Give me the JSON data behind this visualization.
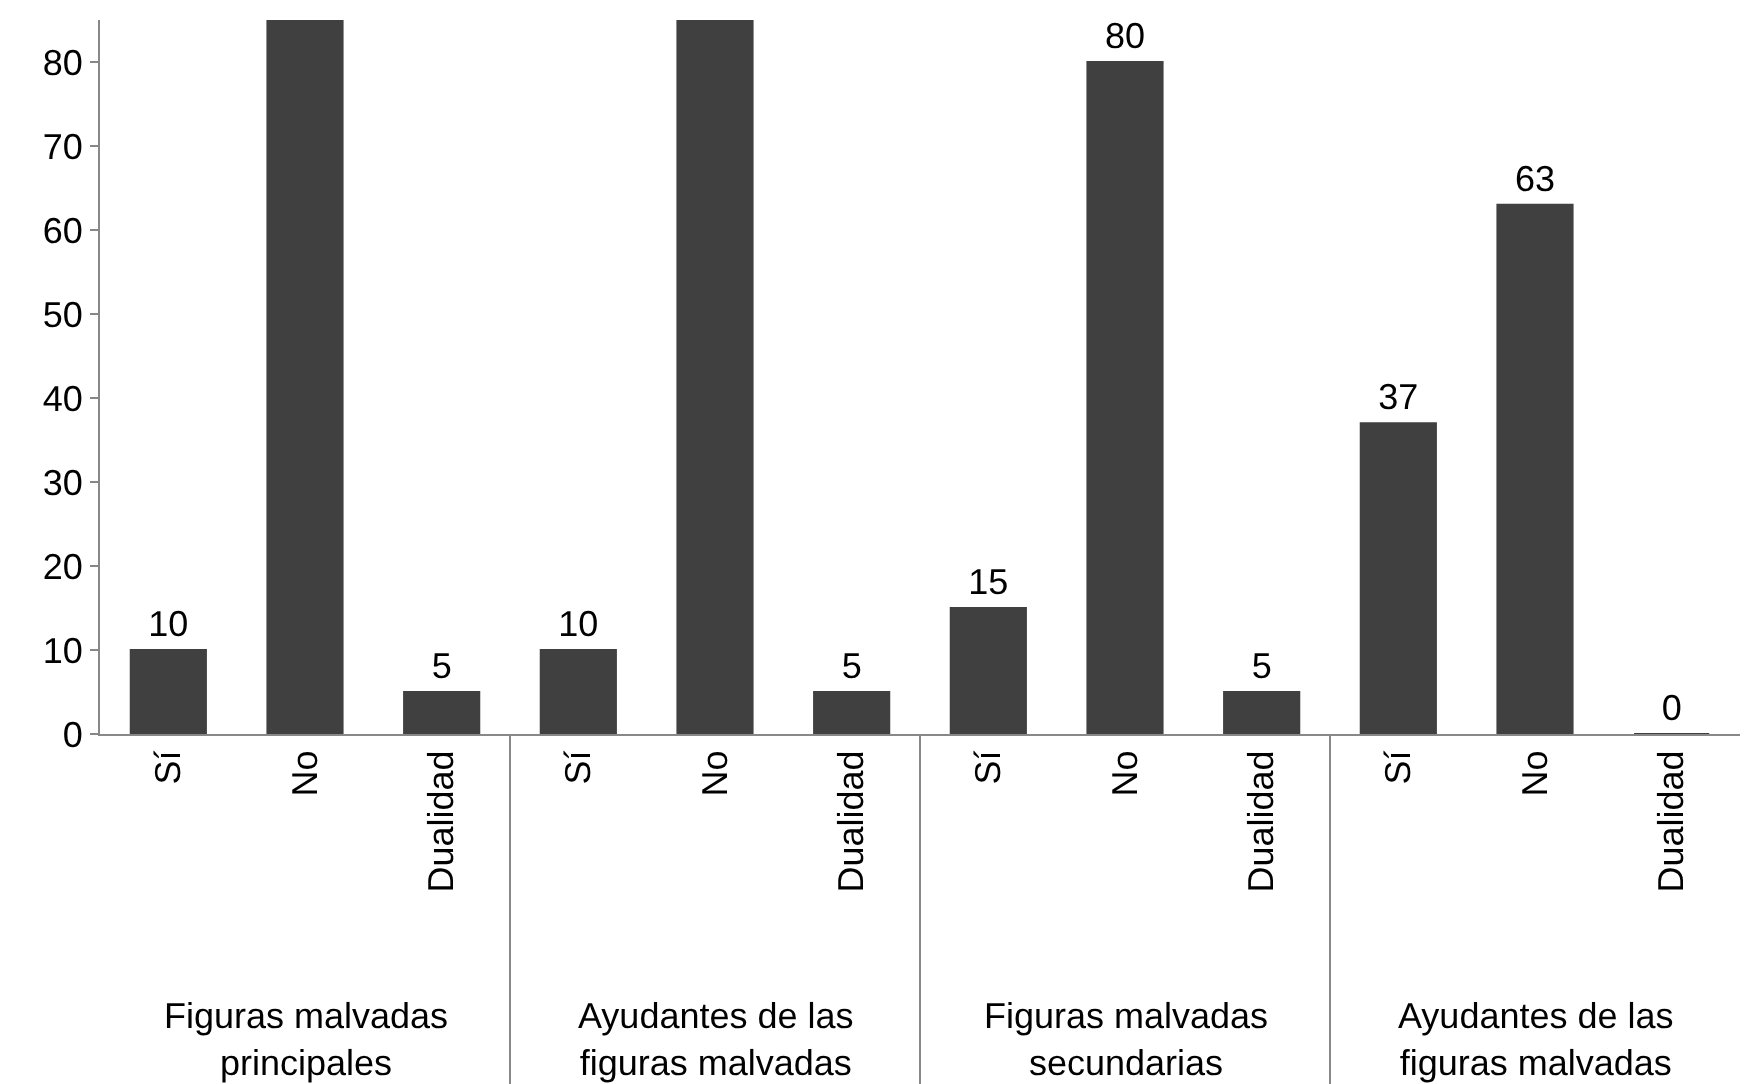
{
  "chart_data": {
    "type": "bar",
    "categories": [
      "Sí",
      "No",
      "Dualidad",
      "Sí",
      "No",
      "Dualidad",
      "Sí",
      "No",
      "Dualidad",
      "Sí",
      "No",
      "Dualidad"
    ],
    "values": [
      10,
      85,
      5,
      10,
      85,
      5,
      15,
      80,
      5,
      37,
      63,
      0
    ],
    "value_labels": [
      "10",
      null,
      "5",
      "10",
      null,
      "5",
      "15",
      "80",
      "5",
      "37",
      "63",
      "0"
    ],
    "color": "#404040",
    "ylim": [
      0,
      85
    ],
    "yticks": [
      0,
      10,
      20,
      30,
      40,
      50,
      60,
      70,
      80
    ],
    "grid": false,
    "annotations": [
      "Figuras malvadas\nprincipales",
      "Ayudantes de las\nfiguras malvadas",
      "Figuras malvadas\nsecundarias",
      "Ayudantes de las\nfiguras malvadas"
    ]
  }
}
